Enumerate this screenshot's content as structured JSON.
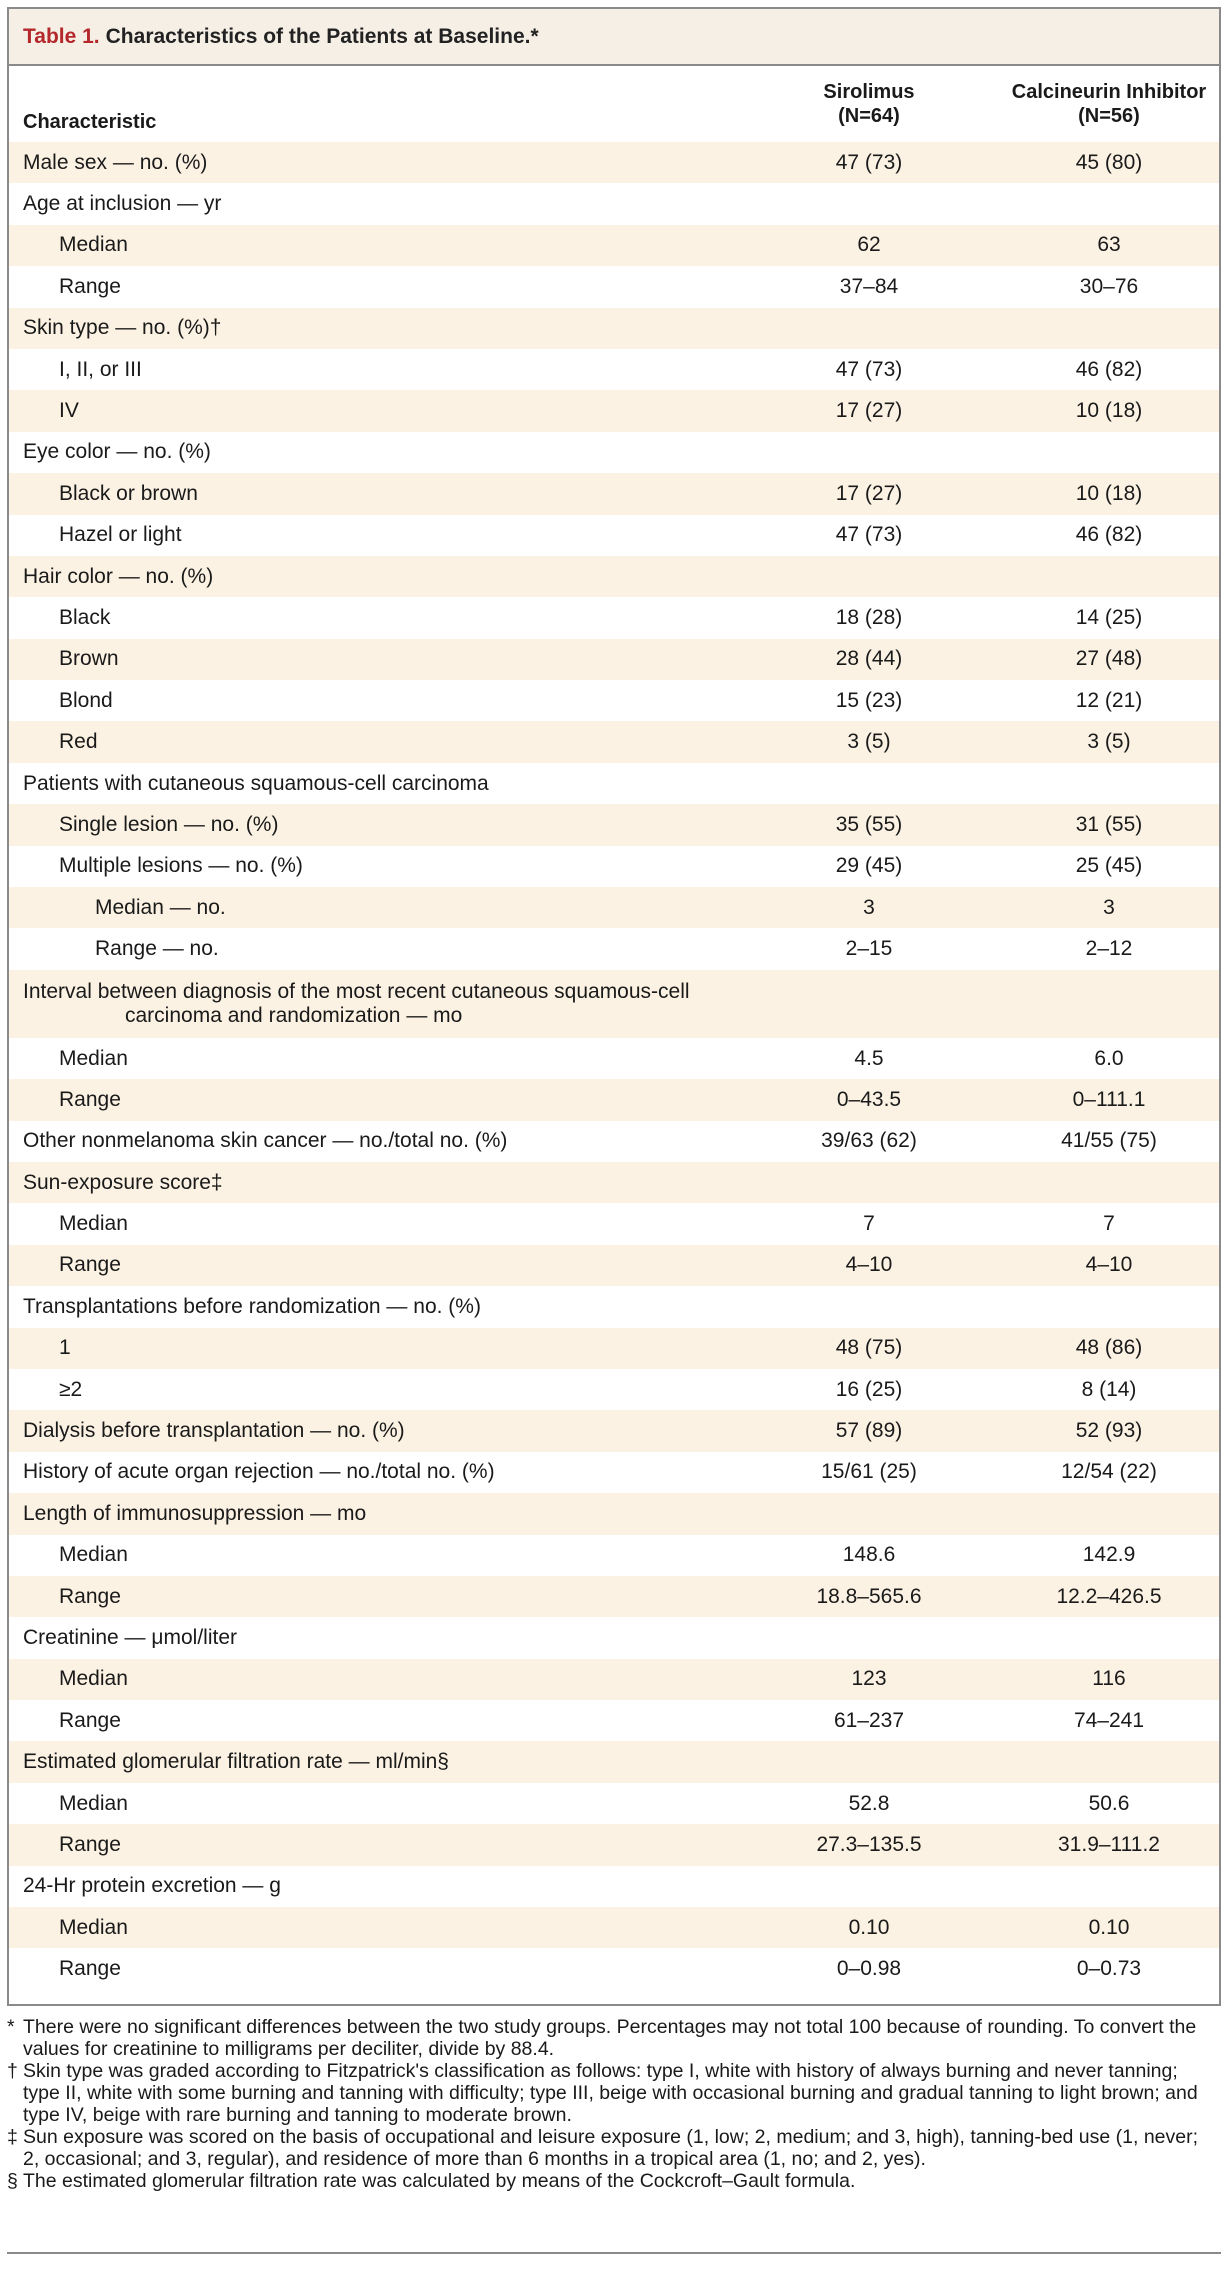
{
  "title": {
    "label": "Table 1.",
    "text": "Characteristics of the Patients at Baseline.*"
  },
  "columns": {
    "characteristic": "Characteristic",
    "col1_line1": "Sirolimus",
    "col1_line2": "(N=64)",
    "col2_line1": "Calcineurin Inhibitor",
    "col2_line2": "(N=56)"
  },
  "rows": [
    {
      "label": "Male sex — no. (%)",
      "indent": 0,
      "shade": true,
      "v1": "47 (73)",
      "v2": "45 (80)"
    },
    {
      "label": "Age at inclusion — yr",
      "indent": 0,
      "shade": false,
      "v1": "",
      "v2": ""
    },
    {
      "label": "Median",
      "indent": 1,
      "shade": true,
      "v1": "62",
      "v2": "63"
    },
    {
      "label": "Range",
      "indent": 1,
      "shade": false,
      "v1": "37–84",
      "v2": "30–76"
    },
    {
      "label": "Skin type — no. (%)†",
      "indent": 0,
      "shade": true,
      "v1": "",
      "v2": ""
    },
    {
      "label": "I, II, or III",
      "indent": 1,
      "shade": false,
      "v1": "47 (73)",
      "v2": "46 (82)"
    },
    {
      "label": "IV",
      "indent": 1,
      "shade": true,
      "v1": "17 (27)",
      "v2": "10 (18)"
    },
    {
      "label": "Eye color — no. (%)",
      "indent": 0,
      "shade": false,
      "v1": "",
      "v2": ""
    },
    {
      "label": "Black or brown",
      "indent": 1,
      "shade": true,
      "v1": "17 (27)",
      "v2": "10 (18)"
    },
    {
      "label": "Hazel or light",
      "indent": 1,
      "shade": false,
      "v1": "47 (73)",
      "v2": "46 (82)"
    },
    {
      "label": "Hair color — no. (%)",
      "indent": 0,
      "shade": true,
      "v1": "",
      "v2": ""
    },
    {
      "label": "Black",
      "indent": 1,
      "shade": false,
      "v1": "18 (28)",
      "v2": "14 (25)"
    },
    {
      "label": "Brown",
      "indent": 1,
      "shade": true,
      "v1": "28 (44)",
      "v2": "27 (48)"
    },
    {
      "label": "Blond",
      "indent": 1,
      "shade": false,
      "v1": "15 (23)",
      "v2": "12 (21)"
    },
    {
      "label": "Red",
      "indent": 1,
      "shade": true,
      "v1": "3 (5)",
      "v2": "3 (5)"
    },
    {
      "label": "Patients with cutaneous squamous-cell carcinoma",
      "indent": 0,
      "shade": false,
      "v1": "",
      "v2": ""
    },
    {
      "label": "Single lesion — no. (%)",
      "indent": 1,
      "shade": true,
      "v1": "35 (55)",
      "v2": "31 (55)"
    },
    {
      "label": "Multiple lesions — no. (%)",
      "indent": 1,
      "shade": false,
      "v1": "29 (45)",
      "v2": "25 (45)"
    },
    {
      "label": "Median — no.",
      "indent": 2,
      "shade": true,
      "v1": "3",
      "v2": "3"
    },
    {
      "label": "Range — no.",
      "indent": 2,
      "shade": false,
      "v1": "2–15",
      "v2": "2–12"
    },
    {
      "label": "Interval between diagnosis of the most recent cutaneous squamous-cell",
      "label2": "carcinoma and randomization — mo",
      "indent": 0,
      "shade": true,
      "tall": true,
      "v1": "",
      "v2": ""
    },
    {
      "label": "Median",
      "indent": 1,
      "shade": false,
      "v1": "4.5",
      "v2": "6.0"
    },
    {
      "label": "Range",
      "indent": 1,
      "shade": true,
      "v1": "0–43.5",
      "v2": "0–111.1"
    },
    {
      "label": "Other nonmelanoma skin cancer — no./total no. (%)",
      "indent": 0,
      "shade": false,
      "v1": "39/63 (62)",
      "v2": "41/55 (75)"
    },
    {
      "label": "Sun-exposure score‡",
      "indent": 0,
      "shade": true,
      "v1": "",
      "v2": ""
    },
    {
      "label": "Median",
      "indent": 1,
      "shade": false,
      "v1": "7",
      "v2": "7"
    },
    {
      "label": "Range",
      "indent": 1,
      "shade": true,
      "v1": "4–10",
      "v2": "4–10"
    },
    {
      "label": "Transplantations before randomization — no. (%)",
      "indent": 0,
      "shade": false,
      "v1": "",
      "v2": ""
    },
    {
      "label": "1",
      "indent": 1,
      "shade": true,
      "v1": "48 (75)",
      "v2": "48 (86)"
    },
    {
      "label": "≥2",
      "indent": 1,
      "shade": false,
      "v1": "16 (25)",
      "v2": "8 (14)"
    },
    {
      "label": "Dialysis before transplantation — no. (%)",
      "indent": 0,
      "shade": true,
      "v1": "57 (89)",
      "v2": "52 (93)"
    },
    {
      "label": "History of acute organ rejection — no./total no. (%)",
      "indent": 0,
      "shade": false,
      "v1": "15/61 (25)",
      "v2": "12/54 (22)"
    },
    {
      "label": "Length of immunosuppression — mo",
      "indent": 0,
      "shade": true,
      "v1": "",
      "v2": ""
    },
    {
      "label": "Median",
      "indent": 1,
      "shade": false,
      "v1": "148.6",
      "v2": "142.9"
    },
    {
      "label": "Range",
      "indent": 1,
      "shade": true,
      "v1": "18.8–565.6",
      "v2": "12.2–426.5"
    },
    {
      "label": "Creatinine — μmol/liter",
      "indent": 0,
      "shade": false,
      "v1": "",
      "v2": ""
    },
    {
      "label": "Median",
      "indent": 1,
      "shade": true,
      "v1": "123",
      "v2": "116"
    },
    {
      "label": "Range",
      "indent": 1,
      "shade": false,
      "v1": "61–237",
      "v2": "74–241"
    },
    {
      "label": "Estimated glomerular filtration rate — ml/min§",
      "indent": 0,
      "shade": true,
      "v1": "",
      "v2": ""
    },
    {
      "label": "Median",
      "indent": 1,
      "shade": false,
      "v1": "52.8",
      "v2": "50.6"
    },
    {
      "label": "Range",
      "indent": 1,
      "shade": true,
      "v1": "27.3–135.5",
      "v2": "31.9–111.2"
    },
    {
      "label": "24-Hr protein excretion — g",
      "indent": 0,
      "shade": false,
      "v1": "",
      "v2": ""
    },
    {
      "label": "Median",
      "indent": 1,
      "shade": true,
      "v1": "0.10",
      "v2": "0.10"
    },
    {
      "label": "Range",
      "indent": 1,
      "shade": false,
      "v1": "0–0.98",
      "v2": "0–0.73"
    }
  ],
  "footnotes": [
    {
      "symbol": "*",
      "text": "There were no significant differences between the two study groups. Percentages may not total 100 because of rounding. To convert the values for creatinine to milligrams per deciliter, divide by 88.4."
    },
    {
      "symbol": "†",
      "text": "Skin type was graded according to Fitzpatrick's classification as follows: type I, white with history of always burning and never tanning; type II, white with some burning and tanning with difficulty; type III, beige with occasional burning and gradual tanning to light brown; and type IV, beige with rare burning and tanning to moderate brown."
    },
    {
      "symbol": "‡",
      "text": "Sun exposure was scored on the basis of occupational and leisure exposure (1, low; 2, medium; and 3, high), tanning-bed use (1, never; 2, occasional; and 3, regular), and residence of more than 6 months in a tropical area (1, no; and 2, yes)."
    },
    {
      "symbol": "§",
      "text": "The estimated glomerular filtration rate was calculated by means of the Cockcroft–Gault formula."
    }
  ],
  "colors": {
    "title_label": "#b4272b",
    "shade": "#fbf2e3",
    "title_bg": "#f6efe6",
    "border": "#8a8a8a"
  }
}
